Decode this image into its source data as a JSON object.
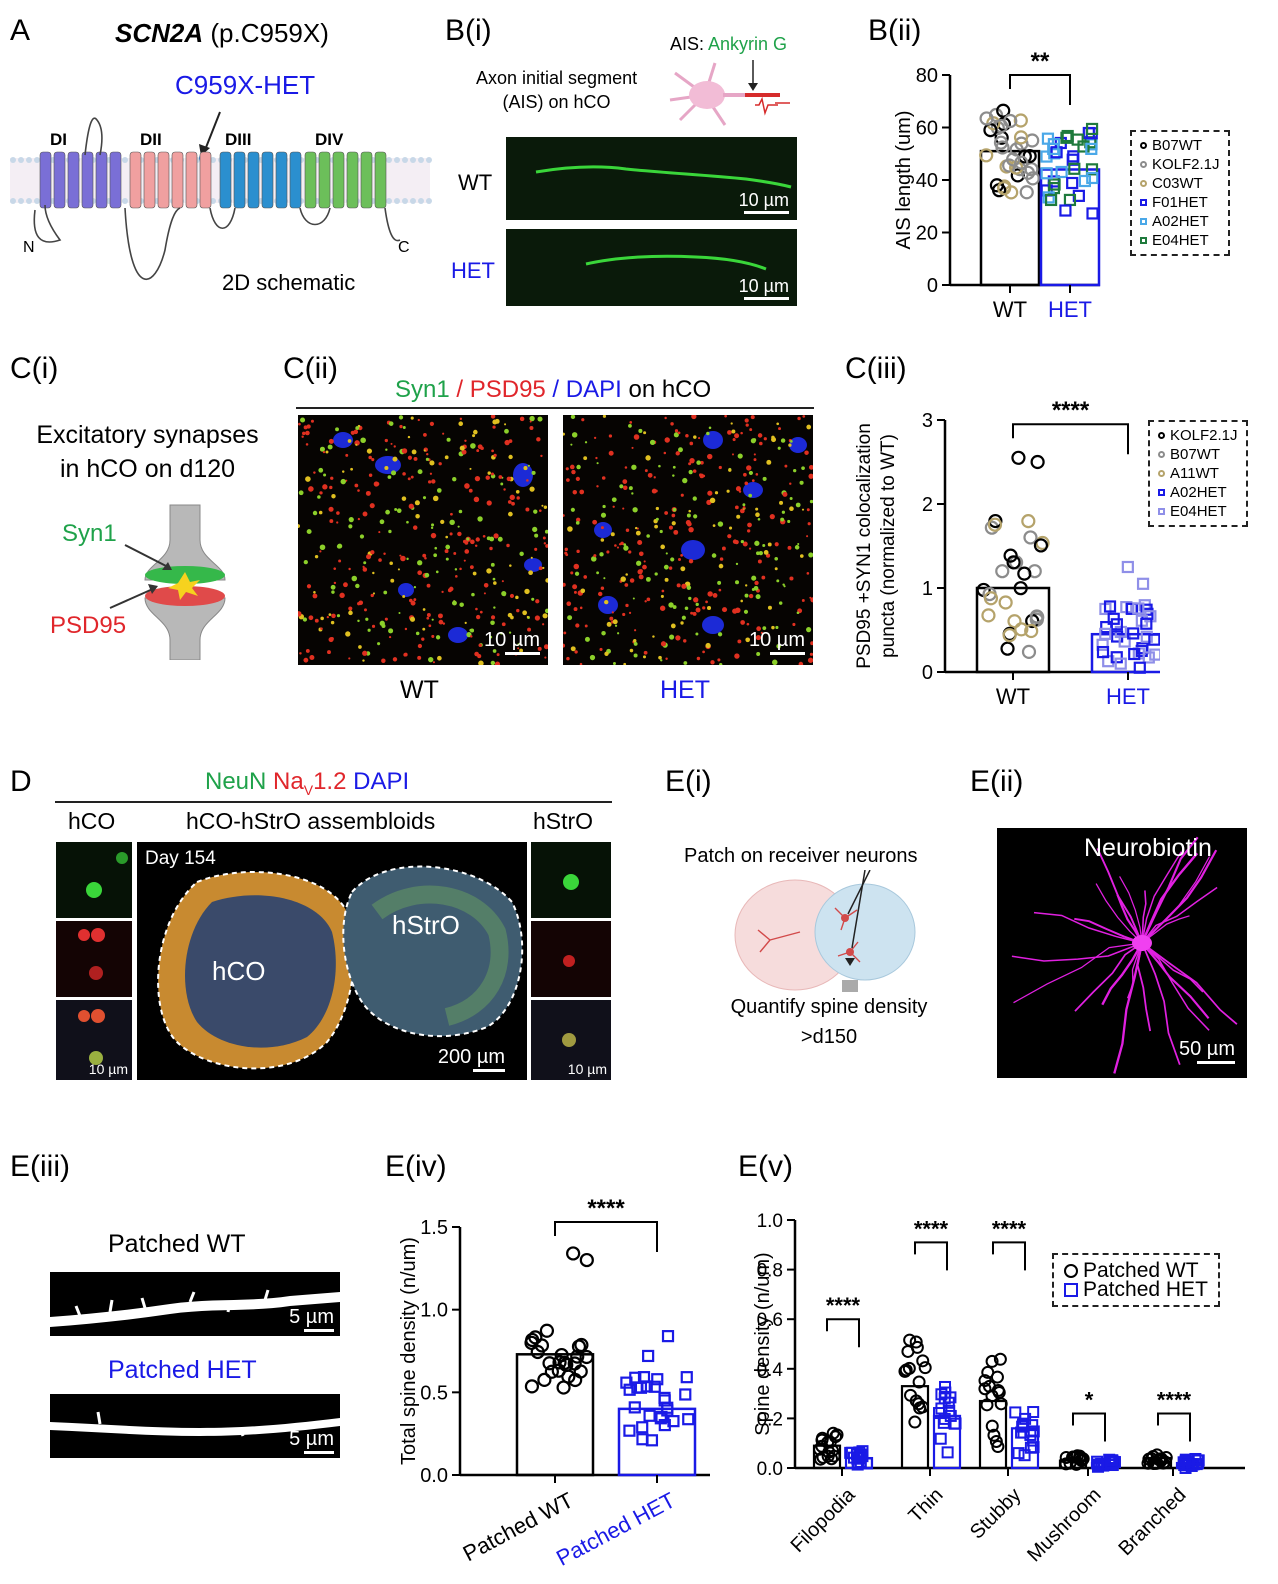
{
  "panels": {
    "a": "A",
    "bi": "B(i)",
    "bii": "B(ii)",
    "ci": "C(i)",
    "cii": "C(ii)",
    "ciii": "C(iii)",
    "d": "D",
    "ei": "E(i)",
    "eii": "E(ii)",
    "eiii": "E(iii)",
    "eiv": "E(iv)",
    "ev": "E(v)"
  },
  "panel_a": {
    "gene": "SCN2A",
    "variant": "(p.C959X)",
    "mutation_label": "C959X-HET",
    "domains": [
      "DI",
      "DII",
      "DIII",
      "DIV"
    ],
    "n_term": "N",
    "c_term": "C",
    "caption": "2D schematic",
    "colors": {
      "DI": "#7a6fd6",
      "DII": "#f0a0a0",
      "DIII": "#2b8fcf",
      "DIV": "#6cbf5a"
    }
  },
  "panel_bi": {
    "ais_label": "AIS:",
    "ais_marker": "Ankyrin G",
    "line1": "Axon initial segment",
    "line2": "(AIS) on hCO",
    "wt_label": "WT",
    "het_label": "HET",
    "scale_wt": "10 µm",
    "scale_het": "10 µm"
  },
  "panel_cii_title": {
    "syn1": "Syn1",
    "sep1": " / ",
    "psd95": "PSD95",
    "sep2": " / ",
    "dapi": "DAPI",
    "suffix": " on hCO"
  },
  "panel_cii": {
    "scale_wt": "10 µm",
    "scale_het": "10 µm",
    "wt_label": "WT",
    "het_label": "HET"
  },
  "panel_ci": {
    "line1": "Excitatory synapses",
    "line2": "in hCO on d120",
    "syn1": "Syn1",
    "psd95": "PSD95"
  },
  "panel_d": {
    "title_neun": "NeuN",
    "title_nav": "Na",
    "title_nav_sub": "V",
    "title_nav_rest": "1.2",
    "title_dapi": "DAPI",
    "hco": "hCO",
    "assembloid": "hCO-hStrO assembloids",
    "hstro": "hStrO",
    "day": "Day 154",
    "region_hco": "hCO",
    "region_hstro": "hStrO",
    "scale_main": "200 µm",
    "scale_small_left": "10 µm",
    "scale_small_right": "10 µm"
  },
  "panel_ei": {
    "top": "Patch on receiver neurons",
    "bottom1": "Quantify spine density",
    "bottom2": ">d150"
  },
  "panel_eii": {
    "label": "Neurobiotin",
    "scale": "50 µm"
  },
  "panel_eiii": {
    "wt": "Patched WT",
    "het": "Patched HET",
    "scale_wt": "5 µm",
    "scale_het": "5 µm"
  },
  "legend_bii": [
    "B07WT",
    "KOLF2.1J",
    "C03WT",
    "F01HET",
    "A02HET",
    "E04HET"
  ],
  "legend_ciii": [
    "KOLF2.1J",
    "B07WT",
    "A11WT",
    "A02HET",
    "E04HET"
  ],
  "legend_ev": [
    "Patched WT",
    "Patched HET"
  ],
  "colors": {
    "wt": "#000000",
    "het": "#1a1ae6",
    "grey": "#8c8c8c",
    "olive": "#b5a36b",
    "lightblue": "#4aa8e8",
    "darkgreen": "#1e7a3c",
    "lavender": "#8f8fe8"
  },
  "chart_data": [
    {
      "type": "bar",
      "panel": "B(ii)",
      "categories": [
        "WT",
        "HET"
      ],
      "values": [
        51,
        44
      ],
      "ylabel": "AIS length (um)",
      "ylim": [
        0,
        80
      ],
      "yticks": [
        0,
        20,
        40,
        60,
        80
      ],
      "significance": "**"
    },
    {
      "type": "bar",
      "panel": "C(iii)",
      "categories": [
        "WT",
        "HET"
      ],
      "values": [
        1.0,
        0.45
      ],
      "ylabel": "PSD95 +SYN1 colocalization puncta (normalized to WT)",
      "ylim": [
        0,
        3
      ],
      "yticks": [
        0,
        1,
        2,
        3
      ],
      "significance": "****"
    },
    {
      "type": "bar",
      "panel": "E(iv)",
      "categories": [
        "Patched WT",
        "Patched HET"
      ],
      "values": [
        0.73,
        0.4
      ],
      "ylabel": "Total spine density (n/um)",
      "ylim": [
        0,
        1.5
      ],
      "yticks": [
        "0.0",
        "0.5",
        "1.0",
        "1.5"
      ],
      "significance": "****"
    },
    {
      "type": "bar",
      "panel": "E(v)",
      "categories": [
        "Filopodia",
        "Thin",
        "Stubby",
        "Mushroom",
        "Branched"
      ],
      "series": [
        {
          "name": "Patched WT",
          "values": [
            0.09,
            0.33,
            0.27,
            0.03,
            0.04
          ]
        },
        {
          "name": "Patched HET",
          "values": [
            0.04,
            0.21,
            0.16,
            0.02,
            0.02
          ]
        }
      ],
      "ylabel": "Spine density (n/um)",
      "ylim": [
        0,
        1.0
      ],
      "yticks": [
        "0.0",
        "0.2",
        "0.4",
        "0.6",
        "0.8",
        "1.0"
      ],
      "significance": [
        "****",
        "****",
        "****",
        "*",
        "****"
      ]
    }
  ]
}
